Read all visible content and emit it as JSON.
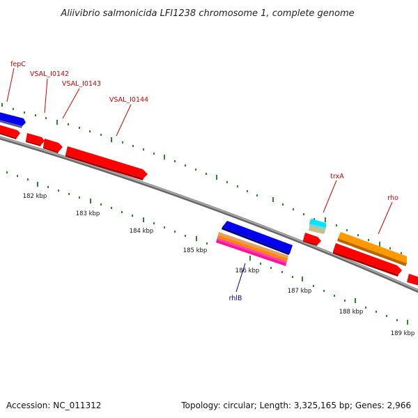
{
  "title": "Aliivibrio salmonicida LFI1238 chromosome 1, complete genome",
  "footer": {
    "accession": "Accession: NC_011312",
    "summary": "Topology: circular; Length: 3,325,165 bp; Genes: 2,966"
  },
  "ticks": [
    "182 kbp",
    "183 kbp",
    "184 kbp",
    "185 kbp",
    "186 kbp",
    "187 kbp",
    "188 kbp",
    "189 kbp"
  ],
  "gene_labels": {
    "fepC": "fepC",
    "vsal_i0142": "VSAL_I0142",
    "vsal_i0143": "VSAL_I0143",
    "vsal_i0144": "VSAL_I0144",
    "trxA": "trxA",
    "rho": "rho",
    "rhlB": "rhlB"
  },
  "colors": {
    "forward_gene": "#ff0000",
    "reverse_gene": "#0000ee",
    "trxA": "#00e5ff",
    "rho": "#ff9900",
    "backbone": "#888888",
    "tick": "#2a8a2a",
    "label_forward": "#cc0000",
    "label_reverse": "#000099"
  }
}
